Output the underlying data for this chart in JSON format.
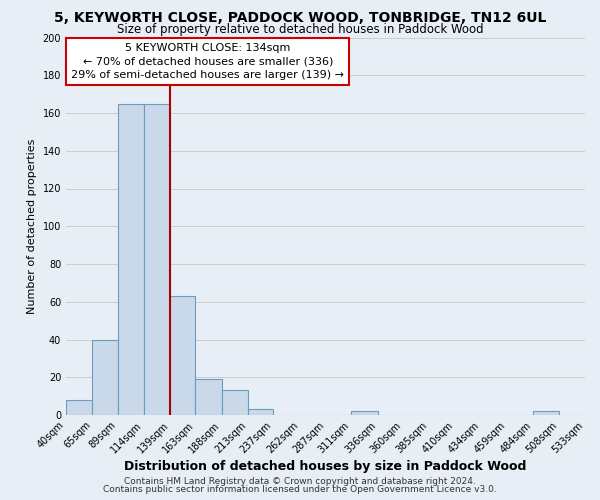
{
  "title1": "5, KEYWORTH CLOSE, PADDOCK WOOD, TONBRIDGE, TN12 6UL",
  "title2": "Size of property relative to detached houses in Paddock Wood",
  "xlabel": "Distribution of detached houses by size in Paddock Wood",
  "ylabel": "Number of detached properties",
  "bin_edges": [
    40,
    65,
    89,
    114,
    139,
    163,
    188,
    213,
    237,
    262,
    287,
    311,
    336,
    360,
    385,
    410,
    434,
    459,
    484,
    508,
    533
  ],
  "bin_counts": [
    8,
    40,
    165,
    165,
    63,
    19,
    13,
    3,
    0,
    0,
    0,
    2,
    0,
    0,
    0,
    0,
    0,
    0,
    2,
    0
  ],
  "bar_facecolor": "#c9d9ea",
  "bar_edgecolor": "#6a9cc0",
  "bar_linewidth": 0.8,
  "grid_color": "#cccccc",
  "bg_color": "#e8eef5",
  "property_line_x": 139,
  "property_line_color": "#aa0000",
  "annotation_line1": "5 KEYWORTH CLOSE: 134sqm",
  "annotation_line2": "← 70% of detached houses are smaller (336)",
  "annotation_line3": "29% of semi-detached houses are larger (139) →",
  "annotation_box_edgecolor": "#cc0000",
  "annotation_box_facecolor": "#ffffff",
  "ylim": [
    0,
    200
  ],
  "yticks": [
    0,
    20,
    40,
    60,
    80,
    100,
    120,
    140,
    160,
    180,
    200
  ],
  "tick_labels": [
    "40sqm",
    "65sqm",
    "89sqm",
    "114sqm",
    "139sqm",
    "163sqm",
    "188sqm",
    "213sqm",
    "237sqm",
    "262sqm",
    "287sqm",
    "311sqm",
    "336sqm",
    "360sqm",
    "385sqm",
    "410sqm",
    "434sqm",
    "459sqm",
    "484sqm",
    "508sqm",
    "533sqm"
  ],
  "footer1": "Contains HM Land Registry data © Crown copyright and database right 2024.",
  "footer2": "Contains public sector information licensed under the Open Government Licence v3.0.",
  "title1_fontsize": 10,
  "title2_fontsize": 8.5,
  "xlabel_fontsize": 9,
  "ylabel_fontsize": 8,
  "tick_fontsize": 7,
  "footer_fontsize": 6.5
}
